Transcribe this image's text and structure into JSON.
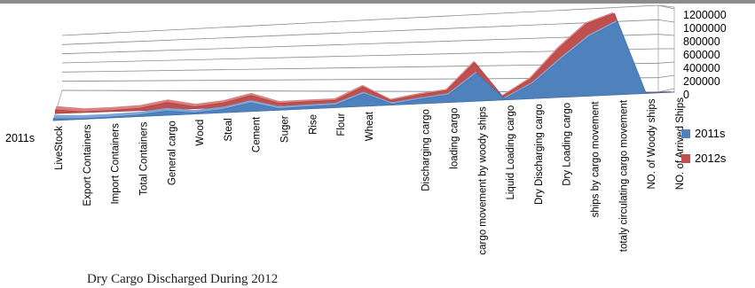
{
  "chart_data": {
    "type": "area",
    "three_d": true,
    "title": "",
    "xlabel": "",
    "ylabel": "",
    "ylim": [
      0,
      1200000
    ],
    "yticks": [
      "1200000",
      "1000000",
      "800000",
      "600000",
      "400000",
      "200000",
      "0"
    ],
    "grid": true,
    "legend_position": "right",
    "categories": [
      "LiveStock",
      "Export Containers",
      "Import Containers",
      "Total Containers",
      "General cargo",
      "Wood",
      "Steal",
      "Cement",
      "Suger",
      "Rise",
      "Flour",
      "Wheat",
      "",
      "Discharging cargo",
      "loading cargo",
      "cargo movement by woody ships",
      "Liquid Loading cargo",
      "Dry Discharging cargo",
      "Dry Loading cargo",
      "ships by cargo movement",
      "totaly circulating cargo movement",
      "NO. of Woody ships",
      "NO. of Arrived Ships"
    ],
    "series": [
      {
        "name": "2011s",
        "color": "#4f81bd",
        "values": [
          30000,
          8000,
          12000,
          25000,
          65000,
          20000,
          50000,
          130000,
          25000,
          35000,
          40000,
          190000,
          15000,
          70000,
          115000,
          420000,
          20000,
          230000,
          580000,
          900000,
          1100000,
          8000,
          5000
        ]
      },
      {
        "name": "2012s",
        "color": "#c0504d",
        "values": [
          55000,
          12000,
          18000,
          35000,
          105000,
          30000,
          70000,
          165000,
          35000,
          45000,
          50000,
          235000,
          20000,
          90000,
          140000,
          540000,
          25000,
          270000,
          700000,
          1050000,
          1190000,
          10000,
          8000
        ]
      }
    ],
    "series_axis_labels": [
      "2011s"
    ]
  },
  "caption": "Dry Cargo Discharged During 2012"
}
